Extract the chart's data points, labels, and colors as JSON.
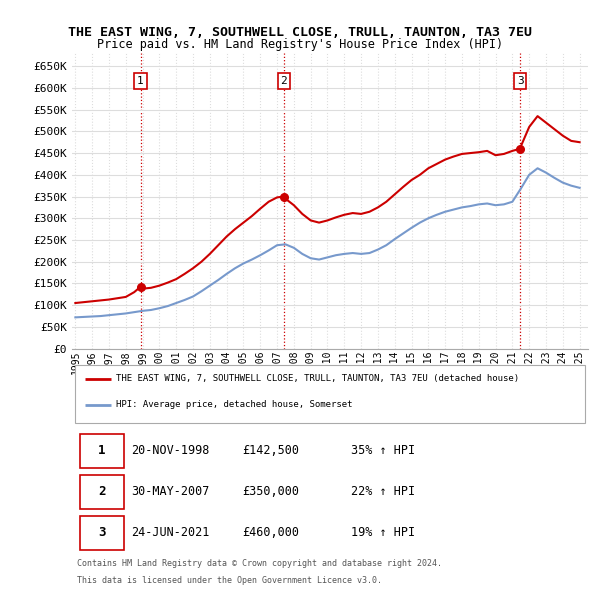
{
  "title": "THE EAST WING, 7, SOUTHWELL CLOSE, TRULL, TAUNTON, TA3 7EU",
  "subtitle": "Price paid vs. HM Land Registry's House Price Index (HPI)",
  "legend_label_red": "THE EAST WING, 7, SOUTHWELL CLOSE, TRULL, TAUNTON, TA3 7EU (detached house)",
  "legend_label_blue": "HPI: Average price, detached house, Somerset",
  "transactions": [
    {
      "num": 1,
      "date": "20-NOV-1998",
      "price": "£142,500",
      "hpi": "35% ↑ HPI",
      "year": 1998.88,
      "value": 142500
    },
    {
      "num": 2,
      "date": "30-MAY-2007",
      "price": "£350,000",
      "hpi": "22% ↑ HPI",
      "year": 2007.41,
      "value": 350000
    },
    {
      "num": 3,
      "date": "24-JUN-2021",
      "price": "£460,000",
      "hpi": "19% ↑ HPI",
      "year": 2021.47,
      "value": 460000
    }
  ],
  "footer_line1": "Contains HM Land Registry data © Crown copyright and database right 2024.",
  "footer_line2": "This data is licensed under the Open Government Licence v3.0.",
  "ylim": [
    0,
    680000
  ],
  "yticks": [
    0,
    50000,
    100000,
    150000,
    200000,
    250000,
    300000,
    350000,
    400000,
    450000,
    500000,
    550000,
    600000,
    650000
  ],
  "xmin": 1994.8,
  "xmax": 2025.5,
  "red_color": "#cc0000",
  "blue_color": "#7799cc",
  "grid_color": "#dddddd",
  "vline_color": "#cc0000",
  "background_color": "#ffffff",
  "red_x": [
    1995.0,
    1995.5,
    1996.0,
    1996.5,
    1997.0,
    1997.5,
    1998.0,
    1998.5,
    1998.88,
    1999.0,
    1999.5,
    2000.0,
    2000.5,
    2001.0,
    2001.5,
    2002.0,
    2002.5,
    2003.0,
    2003.5,
    2004.0,
    2004.5,
    2005.0,
    2005.5,
    2006.0,
    2006.5,
    2007.0,
    2007.41,
    2007.5,
    2008.0,
    2008.5,
    2009.0,
    2009.5,
    2010.0,
    2010.5,
    2011.0,
    2011.5,
    2012.0,
    2012.5,
    2013.0,
    2013.5,
    2014.0,
    2014.5,
    2015.0,
    2015.5,
    2016.0,
    2016.5,
    2017.0,
    2017.5,
    2018.0,
    2018.5,
    2019.0,
    2019.5,
    2020.0,
    2020.5,
    2021.0,
    2021.47,
    2021.5,
    2022.0,
    2022.5,
    2023.0,
    2023.5,
    2024.0,
    2024.5,
    2025.0
  ],
  "red_y": [
    105000,
    107000,
    109000,
    111000,
    113000,
    116000,
    119000,
    130000,
    142500,
    138000,
    140000,
    145000,
    152000,
    160000,
    172000,
    185000,
    200000,
    218000,
    238000,
    258000,
    275000,
    290000,
    305000,
    322000,
    338000,
    348000,
    350000,
    345000,
    330000,
    310000,
    295000,
    290000,
    295000,
    302000,
    308000,
    312000,
    310000,
    315000,
    325000,
    338000,
    355000,
    372000,
    388000,
    400000,
    415000,
    425000,
    435000,
    442000,
    448000,
    450000,
    452000,
    455000,
    445000,
    448000,
    455000,
    460000,
    465000,
    510000,
    535000,
    520000,
    505000,
    490000,
    478000,
    475000
  ],
  "blue_x": [
    1995.0,
    1995.5,
    1996.0,
    1996.5,
    1997.0,
    1997.5,
    1998.0,
    1998.5,
    1999.0,
    1999.5,
    2000.0,
    2000.5,
    2001.0,
    2001.5,
    2002.0,
    2002.5,
    2003.0,
    2003.5,
    2004.0,
    2004.5,
    2005.0,
    2005.5,
    2006.0,
    2006.5,
    2007.0,
    2007.5,
    2008.0,
    2008.5,
    2009.0,
    2009.5,
    2010.0,
    2010.5,
    2011.0,
    2011.5,
    2012.0,
    2012.5,
    2013.0,
    2013.5,
    2014.0,
    2014.5,
    2015.0,
    2015.5,
    2016.0,
    2016.5,
    2017.0,
    2017.5,
    2018.0,
    2018.5,
    2019.0,
    2019.5,
    2020.0,
    2020.5,
    2021.0,
    2021.5,
    2022.0,
    2022.5,
    2023.0,
    2023.5,
    2024.0,
    2024.5,
    2025.0
  ],
  "blue_y": [
    72000,
    73000,
    74000,
    75000,
    77000,
    79000,
    81000,
    84000,
    87000,
    89000,
    93000,
    98000,
    105000,
    112000,
    120000,
    132000,
    145000,
    158000,
    172000,
    185000,
    196000,
    205000,
    215000,
    226000,
    238000,
    240000,
    232000,
    218000,
    208000,
    205000,
    210000,
    215000,
    218000,
    220000,
    218000,
    220000,
    228000,
    238000,
    252000,
    265000,
    278000,
    290000,
    300000,
    308000,
    315000,
    320000,
    325000,
    328000,
    332000,
    334000,
    330000,
    332000,
    338000,
    368000,
    400000,
    415000,
    405000,
    393000,
    382000,
    375000,
    370000
  ]
}
